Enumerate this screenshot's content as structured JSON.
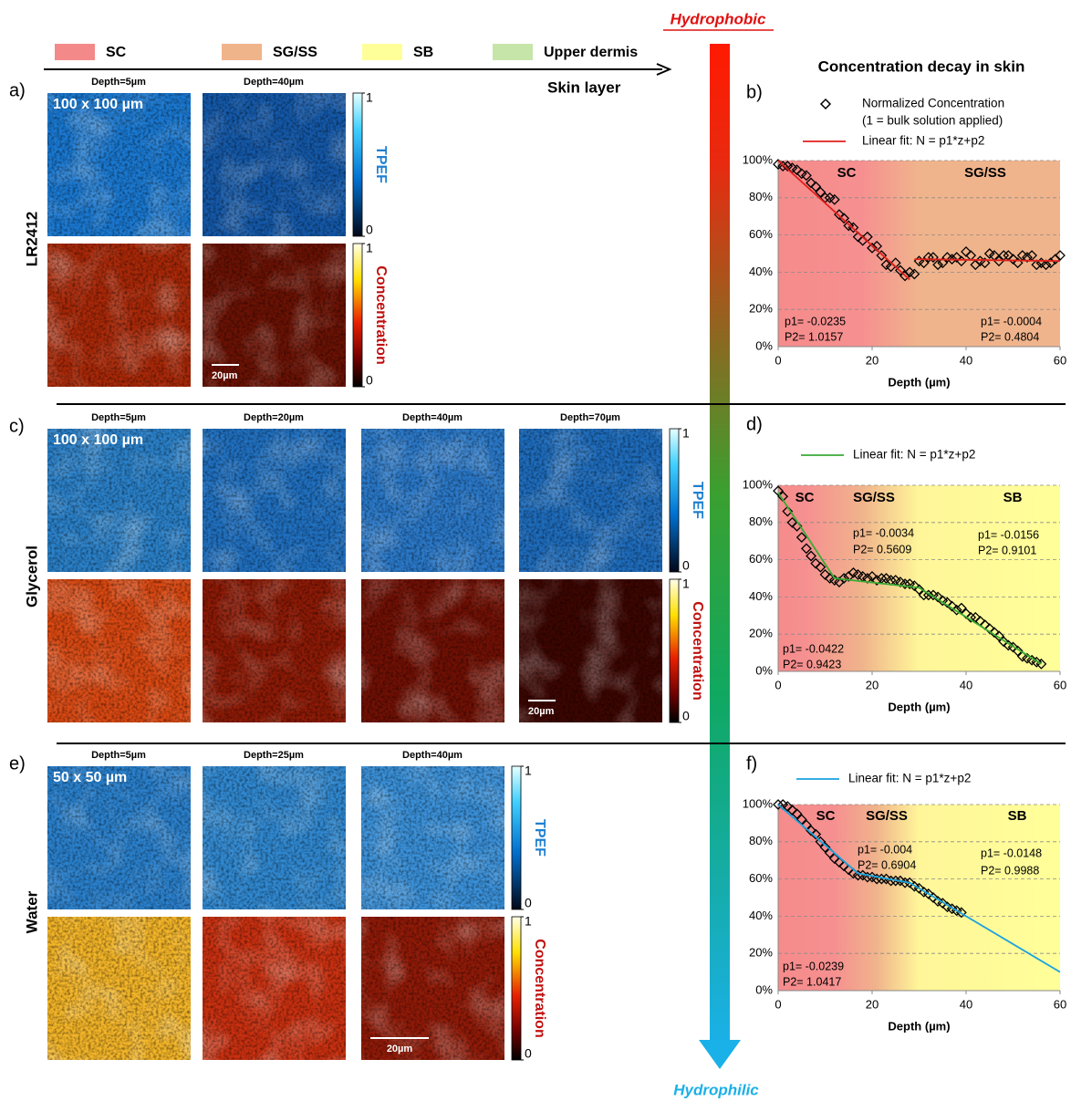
{
  "figure": {
    "legend": {
      "items": [
        {
          "name": "SC",
          "color": "#f4898a"
        },
        {
          "name": "SG/SS",
          "color": "#f0b48a"
        },
        {
          "name": "SB",
          "color": "#ffff99"
        },
        {
          "name": "Upper dermis",
          "color": "#c6e5a8"
        }
      ],
      "axis_label": "Skin layer"
    },
    "gradient": {
      "top": "Hydrophobic",
      "bottom": "Hydrophilic"
    },
    "panels": [
      {
        "label": "a)",
        "sample": "LR2412",
        "field": "100 x 100 µm",
        "depths": [
          "Depth=5µm",
          "Depth=40µm"
        ],
        "tpef": "TPEF",
        "concentration": "Concentration",
        "tpef_ticks": [
          0,
          1
        ],
        "conc_ticks": [
          0,
          1
        ],
        "scale_bar": "20µm"
      },
      {
        "label": "c)",
        "sample": "Glycerol",
        "field": "100 x 100 µm",
        "depths": [
          "Depth=5µm",
          "Depth=20µm",
          "Depth=40µm",
          "Depth=70µm"
        ],
        "tpef": "TPEF",
        "concentration": "Concentration",
        "tpef_ticks": [
          0,
          1
        ],
        "conc_ticks": [
          0,
          1
        ],
        "scale_bar": "20µm"
      },
      {
        "label": "e)",
        "sample": "Water",
        "field": "50 x 50 µm",
        "depths": [
          "Depth=5µm",
          "Depth=25µm",
          "Depth=40µm"
        ],
        "tpef": "TPEF",
        "concentration": "Concentration",
        "tpef_ticks": [
          0,
          1
        ],
        "conc_ticks": [
          0,
          1
        ],
        "scale_bar": "20µm"
      }
    ]
  },
  "chart_data": [
    {
      "type": "scatter",
      "label": "b)",
      "title": "Concentration decay in skin",
      "xlabel": "Depth (µm)",
      "xlim": [
        0,
        60
      ],
      "xticks": [
        0,
        20,
        40,
        60
      ],
      "ylim": [
        0,
        100
      ],
      "yticks": [
        {
          "value": 0,
          "label": "0%"
        },
        {
          "value": 20,
          "label": "20%"
        },
        {
          "value": 40,
          "label": "40%"
        },
        {
          "value": 60,
          "label": "60%"
        },
        {
          "value": 80,
          "label": "80%"
        },
        {
          "value": 100,
          "label": "100%"
        }
      ],
      "grid": true,
      "regions": [
        "SC",
        "SG/SS"
      ],
      "annotations": [
        "p1= -0.0235",
        "P2= 1.0157",
        "p1= -0.0004",
        "P2= 0.4804"
      ],
      "legend_note": "(1 = bulk solution applied)",
      "series": [
        {
          "name": "Normalized Concentration",
          "marker": "diamond",
          "color": "#000000",
          "x": [
            0,
            1,
            2,
            3,
            4,
            5,
            6,
            7,
            8,
            9,
            10,
            11,
            12,
            13,
            14,
            15,
            16,
            17,
            18,
            19,
            20,
            21,
            22,
            23,
            24,
            25,
            26,
            27,
            28,
            29,
            30,
            31,
            32,
            33,
            34,
            35,
            36,
            37,
            38,
            39,
            40,
            41,
            42,
            43,
            44,
            45,
            46,
            47,
            48,
            49,
            50,
            51,
            52,
            53,
            54,
            55,
            56,
            57,
            58,
            59,
            60
          ],
          "values": [
            98,
            97,
            97,
            96,
            95,
            93,
            92,
            88,
            86,
            83,
            80,
            80,
            79,
            71,
            69,
            65,
            64,
            59,
            57,
            59,
            53,
            54,
            49,
            44,
            43,
            45,
            41,
            38,
            40,
            39,
            46,
            45,
            48,
            48,
            44,
            45,
            48,
            47,
            48,
            46,
            51,
            49,
            44,
            46,
            45,
            50,
            49,
            46,
            49,
            49,
            47,
            45,
            49,
            48,
            49,
            44,
            45,
            44,
            45,
            47,
            49
          ]
        },
        {
          "name": "Linear fit: N = p1*z+p2",
          "type": "line",
          "color": "#e0201b",
          "x": [
            0,
            28,
            28.5,
            29,
            60
          ],
          "values": [
            100,
            36,
            null,
            47,
            46
          ]
        }
      ]
    },
    {
      "type": "scatter",
      "label": "d)",
      "xlabel": "Depth (µm)",
      "xlim": [
        0,
        60
      ],
      "xticks": [
        0,
        20,
        40,
        60
      ],
      "ylim": [
        0,
        100
      ],
      "yticks": [
        {
          "value": 0,
          "label": "0%"
        },
        {
          "value": 20,
          "label": "20%"
        },
        {
          "value": 40,
          "label": "40%"
        },
        {
          "value": 60,
          "label": "60%"
        },
        {
          "value": 80,
          "label": "80%"
        },
        {
          "value": 100,
          "label": "100%"
        }
      ],
      "grid": true,
      "regions": [
        "SC",
        "SG/SS",
        "SB"
      ],
      "annotations": [
        "p1= -0.0034",
        "P2= 0.5609",
        "p1= -0.0156",
        "P2= 0.9101",
        "p1= -0.0422",
        "P2= 0.9423"
      ],
      "series": [
        {
          "marker": "diamond",
          "color": "#000000",
          "x": [
            0,
            1,
            2,
            3,
            4,
            5,
            6,
            7,
            8,
            9,
            10,
            11,
            12,
            13,
            14,
            15,
            16,
            17,
            18,
            19,
            20,
            21,
            22,
            23,
            24,
            25,
            26,
            27,
            28,
            29,
            30,
            31,
            32,
            33,
            34,
            35,
            36,
            37,
            38,
            39,
            40,
            41,
            42,
            43,
            44,
            45,
            46,
            47,
            48,
            49,
            50,
            51,
            52,
            53,
            54,
            55,
            56
          ],
          "values": [
            97,
            94,
            86,
            80,
            78,
            72,
            66,
            62,
            58,
            56,
            52,
            50,
            49,
            48,
            50,
            51,
            53,
            52,
            51,
            50,
            51,
            49,
            50,
            50,
            49,
            49,
            48,
            47,
            47,
            46,
            44,
            41,
            41,
            41,
            40,
            38,
            37,
            35,
            33,
            34,
            31,
            29,
            29,
            27,
            25,
            23,
            21,
            19,
            16,
            14,
            13,
            11,
            8,
            7,
            6,
            5,
            4
          ]
        },
        {
          "name": "Linear fit: N = p1*z+p2",
          "type": "line",
          "color": "#3aaa35",
          "x": [
            0,
            12,
            30,
            56
          ],
          "values": [
            96,
            50,
            45,
            4
          ]
        }
      ]
    },
    {
      "type": "scatter",
      "label": "f)",
      "xlabel": "Depth (µm)",
      "xlim": [
        0,
        60
      ],
      "xticks": [
        0,
        20,
        40,
        60
      ],
      "ylim": [
        0,
        100
      ],
      "yticks": [
        {
          "value": 0,
          "label": "0%"
        },
        {
          "value": 20,
          "label": "20%"
        },
        {
          "value": 40,
          "label": "40%"
        },
        {
          "value": 60,
          "label": "60%"
        },
        {
          "value": 80,
          "label": "80%"
        },
        {
          "value": 100,
          "label": "100%"
        }
      ],
      "grid": true,
      "regions": [
        "SC",
        "SG/SS",
        "SB"
      ],
      "annotations": [
        "p1= -0.004",
        "P2= 0.6904",
        "p1= -0.0148",
        "P2= 0.9988",
        "p1= -0.0239",
        "P2= 1.0417"
      ],
      "series": [
        {
          "marker": "diamond",
          "color": "#000000",
          "x": [
            0,
            1,
            2,
            3,
            4,
            5,
            6,
            7,
            8,
            9,
            10,
            11,
            12,
            13,
            14,
            15,
            16,
            17,
            18,
            19,
            20,
            21,
            22,
            23,
            24,
            25,
            26,
            27,
            28,
            29,
            30,
            31,
            32,
            33,
            34,
            35,
            36,
            37,
            38,
            39
          ],
          "values": [
            100,
            100,
            99,
            97,
            95,
            92,
            89,
            86,
            84,
            80,
            77,
            74,
            71,
            69,
            67,
            65,
            63,
            62,
            62,
            61,
            61,
            60,
            60,
            60,
            59,
            59,
            59,
            58,
            58,
            56,
            55,
            53,
            52,
            50,
            48,
            47,
            45,
            44,
            43,
            42
          ]
        },
        {
          "name": "Linear fit: N = p1*z+p2",
          "type": "line",
          "color": "#1aa3e0",
          "x": [
            0,
            17,
            28,
            60
          ],
          "values": [
            100,
            63,
            58,
            10
          ]
        }
      ]
    }
  ]
}
